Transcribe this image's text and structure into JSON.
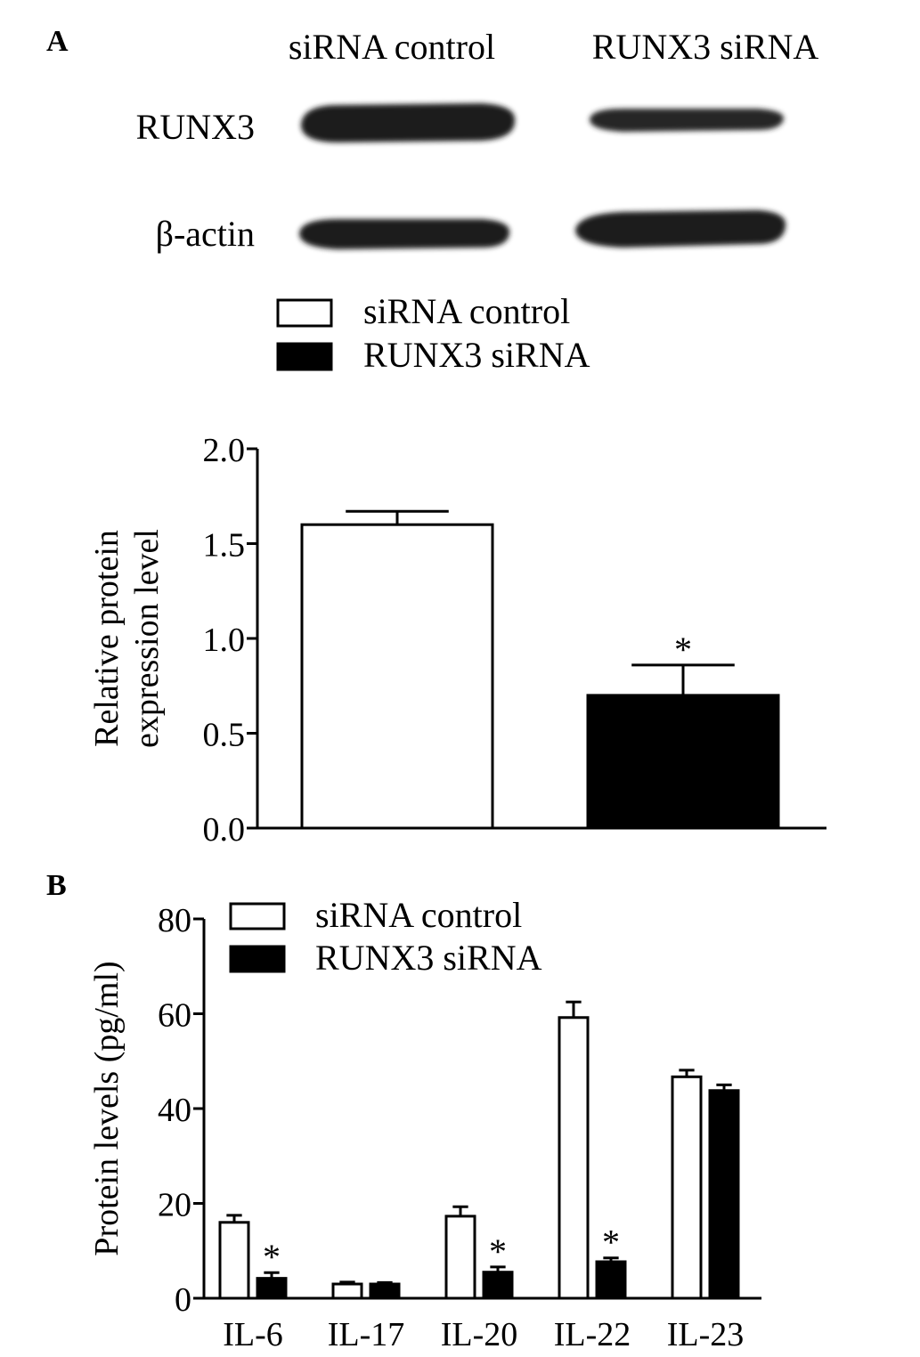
{
  "panel_a": {
    "label": "A",
    "blot": {
      "lane_labels": [
        "siRNA control",
        "RUNX3 siRNA"
      ],
      "row_labels": [
        "RUNX3",
        "β-actin"
      ]
    }
  },
  "panel_b": {
    "label": "B"
  },
  "chart_data": [
    {
      "type": "bar",
      "panel": "A",
      "ylabel": [
        "Relative protein",
        "expression level"
      ],
      "xlabel": "",
      "ylim": [
        0,
        2.0
      ],
      "yticks": [
        "0.0",
        "0.5",
        "1.0",
        "1.5",
        "2.0"
      ],
      "categories": [
        "siRNA control",
        "RUNX3 siRNA"
      ],
      "values": [
        1.6,
        0.7
      ],
      "errors": [
        0.07,
        0.16
      ],
      "annotations": [
        "",
        "*"
      ],
      "legend": {
        "placement": "top",
        "entries": [
          {
            "name": "siRNA control",
            "fill": "#ffffff"
          },
          {
            "name": "RUNX3 siRNA",
            "fill": "#000000"
          }
        ]
      }
    },
    {
      "type": "bar",
      "panel": "B",
      "ylabel": "Protein levels (pg/ml)",
      "xlabel": "",
      "ylim": [
        0,
        80
      ],
      "yticks": [
        "0",
        "20",
        "40",
        "60",
        "80"
      ],
      "categories": [
        "IL-6",
        "IL-17",
        "IL-20",
        "IL-22",
        "IL-23"
      ],
      "series": [
        {
          "name": "siRNA control",
          "fill": "#ffffff",
          "values": [
            16,
            3,
            17.3,
            59.2,
            46.7
          ],
          "errors": [
            1.5,
            0.4,
            2.0,
            3.3,
            1.4
          ],
          "annotations": [
            "",
            "",
            "",
            "",
            ""
          ]
        },
        {
          "name": "RUNX3 siRNA",
          "fill": "#000000",
          "values": [
            4.2,
            3,
            5.5,
            7.7,
            43.8
          ],
          "errors": [
            1.2,
            0.3,
            1.1,
            0.8,
            1.2
          ],
          "annotations": [
            "*",
            "",
            "*",
            "*",
            ""
          ]
        }
      ],
      "legend": {
        "placement": "top-left"
      }
    }
  ]
}
